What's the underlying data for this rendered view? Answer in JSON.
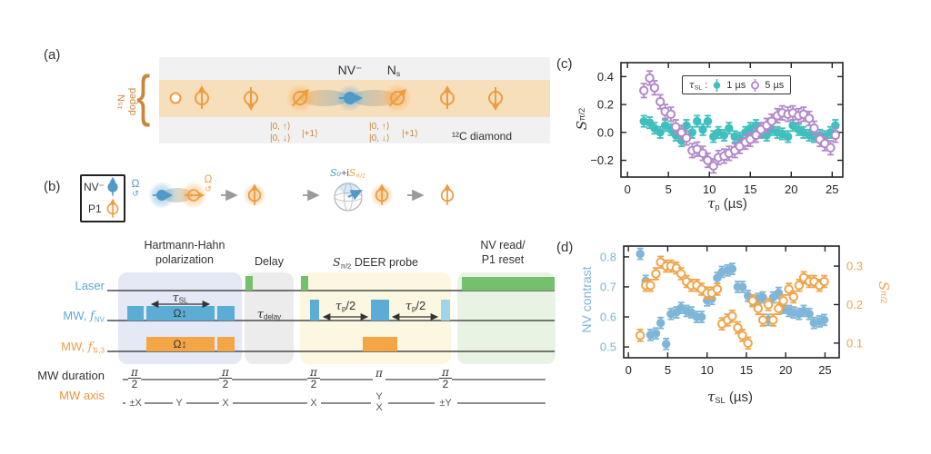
{
  "panel_a": {
    "tag": "(a)",
    "doped_line1": "¹⁵N",
    "doped_line2": "doped",
    "brace": "{",
    "nv_label": "NV⁻",
    "ns_base": "N",
    "ns_sub": "s",
    "ket_up": "|0, ↑⟩",
    "ket_down": "|0, ↓⟩",
    "ket_plus": "|+1⟩",
    "diamond": "¹²C diamond"
  },
  "panel_b": {
    "tag": "(b)",
    "legend_nv": "NV⁻",
    "legend_p1": "P1",
    "omega": "Ω",
    "rot_arrow": "↺",
    "bloch_s0": "S₀",
    "bloch_plus_i": "+i",
    "bloch_s": "S",
    "bloch_s_sub": "π/2"
  },
  "pulse": {
    "hh1": "Hartmann-Hahn",
    "hh2": "polarization",
    "delay": "Delay",
    "deer_s": "S",
    "deer_sub": "π/2",
    "deer_rest": " DEER probe",
    "read1": "NV read/",
    "read2": "P1 reset",
    "laser": "Laser",
    "mw": "MW, ",
    "f": "f",
    "f_nv_sub": "NV",
    "f_p1_sub": "⇅,3",
    "duration": "MW duration",
    "axis": "MW axis",
    "tau": "τ",
    "sl": "SL",
    "p_sub": "p",
    "delay_sub": "delay",
    "half": "/2",
    "omega_drive": "Ω↕",
    "pi": "π",
    "two": "2",
    "ax_pmx": "±X",
    "ax_y": "Y",
    "ax_x": "X",
    "ax_pmy": "±Y"
  },
  "panel_c": {
    "tag": "(c)",
    "legend_tau": "τ",
    "legend_sl": "SL",
    "legend_colon": " :",
    "legend_item1": "1 µs",
    "legend_item2": "5 µs",
    "ylabel_s": "S",
    "ylabel_sub": "π/2",
    "xlabel_tau": "τ",
    "xlabel_sub": "p",
    "xlabel_unit": " (µs)"
  },
  "panel_d": {
    "tag": "(d)",
    "ylabel_left": "NV contrast",
    "ylabel_s": "S",
    "ylabel_sub": "π/2",
    "xlabel_tau": "τ",
    "xlabel_sub": "SL",
    "xlabel_unit": " (µs)"
  },
  "colors": {
    "nv_blue": "#4f9ac8",
    "p1_orange": "#ed9c40",
    "band_orange": "#f8dfbc",
    "lattice_gray": "#f1f1f2",
    "laser_green": "#74c06c",
    "mw_blue_pulse": "#5badd5",
    "mw_blue_pulse_light": "#9fd4ea",
    "mw_orange_pulse": "#f4a545",
    "hh_panel": "#e5e8f5",
    "delay_panel": "#ececec",
    "deer_panel": "#fbf7e1",
    "read_panel": "#e9f3e4",
    "teal_series": "#3fbfbd",
    "purple_series": "#b288cb",
    "contrast_blue": "#7eb5d8",
    "s_orange": "#f0a44a"
  },
  "chart_data": [
    {
      "type": "scatter",
      "panel": "c",
      "title": "",
      "xlabel": "τ_p (µs)",
      "ylabel": "S_π/2",
      "xlim": [
        -0.8,
        26.3
      ],
      "xticks": [
        0,
        5,
        10,
        15,
        20,
        25
      ],
      "ylim": [
        -0.32,
        0.5
      ],
      "yticks": [
        -0.2,
        0.0,
        0.2,
        0.4
      ],
      "legend_title": "τ_SL:",
      "legend_position": "top",
      "grid": false,
      "series": [
        {
          "name": "1 µs",
          "marker": "filled",
          "color": "#3fbfbd",
          "yerr": 0.04,
          "x": [
            2.0,
            2.7,
            3.3,
            4.0,
            4.6,
            5.3,
            5.9,
            6.6,
            7.2,
            7.9,
            8.5,
            9.2,
            9.8,
            10.5,
            11.1,
            11.8,
            12.4,
            13.1,
            13.7,
            14.4,
            15.0,
            15.7,
            16.3,
            17.0,
            17.6,
            18.3,
            18.9,
            19.6,
            20.2,
            20.9,
            21.5,
            22.2,
            22.8,
            23.5,
            24.1,
            24.8,
            25.4
          ],
          "y": [
            0.08,
            0.07,
            0.03,
            0.0,
            0.05,
            0.02,
            -0.02,
            -0.06,
            0.05,
            0.0,
            0.08,
            0.02,
            0.08,
            -0.03,
            0.0,
            -0.02,
            0.03,
            -0.03,
            -0.04,
            0.0,
            0.03,
            0.05,
            0.0,
            -0.02,
            0.02,
            0.0,
            -0.01,
            -0.03,
            0.05,
            0.02,
            0.0,
            -0.02,
            -0.03,
            -0.02,
            -0.03,
            0.0,
            0.05
          ]
        },
        {
          "name": "5 µs",
          "marker": "open",
          "color": "#b288cb",
          "yerr": 0.05,
          "x": [
            2.0,
            2.7,
            3.3,
            4.0,
            4.6,
            5.3,
            5.9,
            6.6,
            7.2,
            7.9,
            8.5,
            9.2,
            9.8,
            10.5,
            11.1,
            11.8,
            12.4,
            13.1,
            13.7,
            14.4,
            15.0,
            15.7,
            16.3,
            17.0,
            17.6,
            18.3,
            18.9,
            19.6,
            20.2,
            20.9,
            21.5,
            22.2,
            22.8,
            23.5,
            24.1,
            24.8,
            25.4
          ],
          "y": [
            0.3,
            0.39,
            0.32,
            0.22,
            0.15,
            0.13,
            0.04,
            0.0,
            -0.04,
            -0.13,
            -0.12,
            -0.15,
            -0.2,
            -0.24,
            -0.18,
            -0.17,
            -0.15,
            -0.13,
            -0.1,
            -0.07,
            -0.05,
            -0.02,
            0.02,
            0.05,
            0.08,
            0.12,
            0.14,
            0.13,
            0.14,
            0.12,
            0.13,
            0.1,
            0.03,
            -0.05,
            -0.08,
            -0.11,
            -0.02
          ]
        }
      ]
    },
    {
      "type": "scatter",
      "panel": "d",
      "title": "",
      "xlabel": "τ_SL (µs)",
      "ylabel_left": "NV contrast",
      "ylabel_right": "S_π/2",
      "xlim": [
        -0.6,
        26.8
      ],
      "xticks": [
        0,
        5,
        10,
        15,
        20,
        25
      ],
      "ylim_left": [
        0.464,
        0.836
      ],
      "yticks_left": [
        0.5,
        0.6,
        0.7,
        0.8
      ],
      "ylim_right": [
        0.062,
        0.352
      ],
      "yticks_right": [
        0.1,
        0.2,
        0.3
      ],
      "grid": false,
      "series": [
        {
          "name": "NV contrast",
          "axis": "left",
          "marker": "filled",
          "color": "#7eb5d8",
          "yerr": 0.018,
          "x": [
            1.5,
            2.2,
            2.8,
            3.5,
            4.1,
            4.8,
            5.4,
            6.1,
            6.7,
            7.4,
            8.0,
            8.7,
            9.3,
            10.0,
            10.6,
            11.3,
            11.9,
            12.6,
            13.2,
            13.9,
            14.5,
            15.2,
            15.8,
            16.5,
            17.1,
            17.8,
            18.4,
            19.1,
            19.7,
            20.4,
            21.0,
            21.7,
            22.3,
            23.0,
            23.6,
            24.3,
            24.9
          ],
          "y": [
            0.81,
            0.72,
            0.54,
            0.545,
            0.58,
            0.51,
            0.61,
            0.615,
            0.63,
            0.62,
            0.615,
            0.6,
            0.6,
            0.655,
            0.66,
            0.73,
            0.75,
            0.755,
            0.76,
            0.7,
            0.7,
            0.67,
            0.655,
            0.66,
            0.665,
            0.59,
            0.665,
            0.68,
            0.63,
            0.62,
            0.615,
            0.61,
            0.62,
            0.61,
            0.58,
            0.585,
            0.59
          ]
        },
        {
          "name": "S_π/2",
          "axis": "right",
          "marker": "open",
          "color": "#f0a44a",
          "yerr": 0.015,
          "x": [
            1.5,
            2.2,
            2.8,
            3.5,
            4.1,
            4.8,
            5.4,
            6.1,
            6.7,
            7.4,
            8.0,
            8.7,
            9.3,
            10.0,
            10.6,
            11.3,
            11.9,
            12.6,
            13.2,
            13.9,
            14.5,
            15.2,
            15.8,
            16.5,
            17.1,
            17.8,
            18.4,
            19.1,
            19.7,
            20.4,
            21.0,
            21.7,
            22.3,
            23.0,
            23.6,
            24.3,
            24.9
          ],
          "y": [
            0.12,
            0.25,
            0.25,
            0.28,
            0.31,
            0.3,
            0.3,
            0.295,
            0.28,
            0.26,
            0.25,
            0.25,
            0.24,
            0.23,
            0.23,
            0.24,
            0.15,
            0.16,
            0.17,
            0.14,
            0.12,
            0.1,
            0.21,
            0.19,
            0.16,
            0.2,
            0.16,
            0.19,
            0.21,
            0.24,
            0.22,
            0.25,
            0.27,
            0.26,
            0.26,
            0.25,
            0.26
          ]
        }
      ]
    }
  ]
}
